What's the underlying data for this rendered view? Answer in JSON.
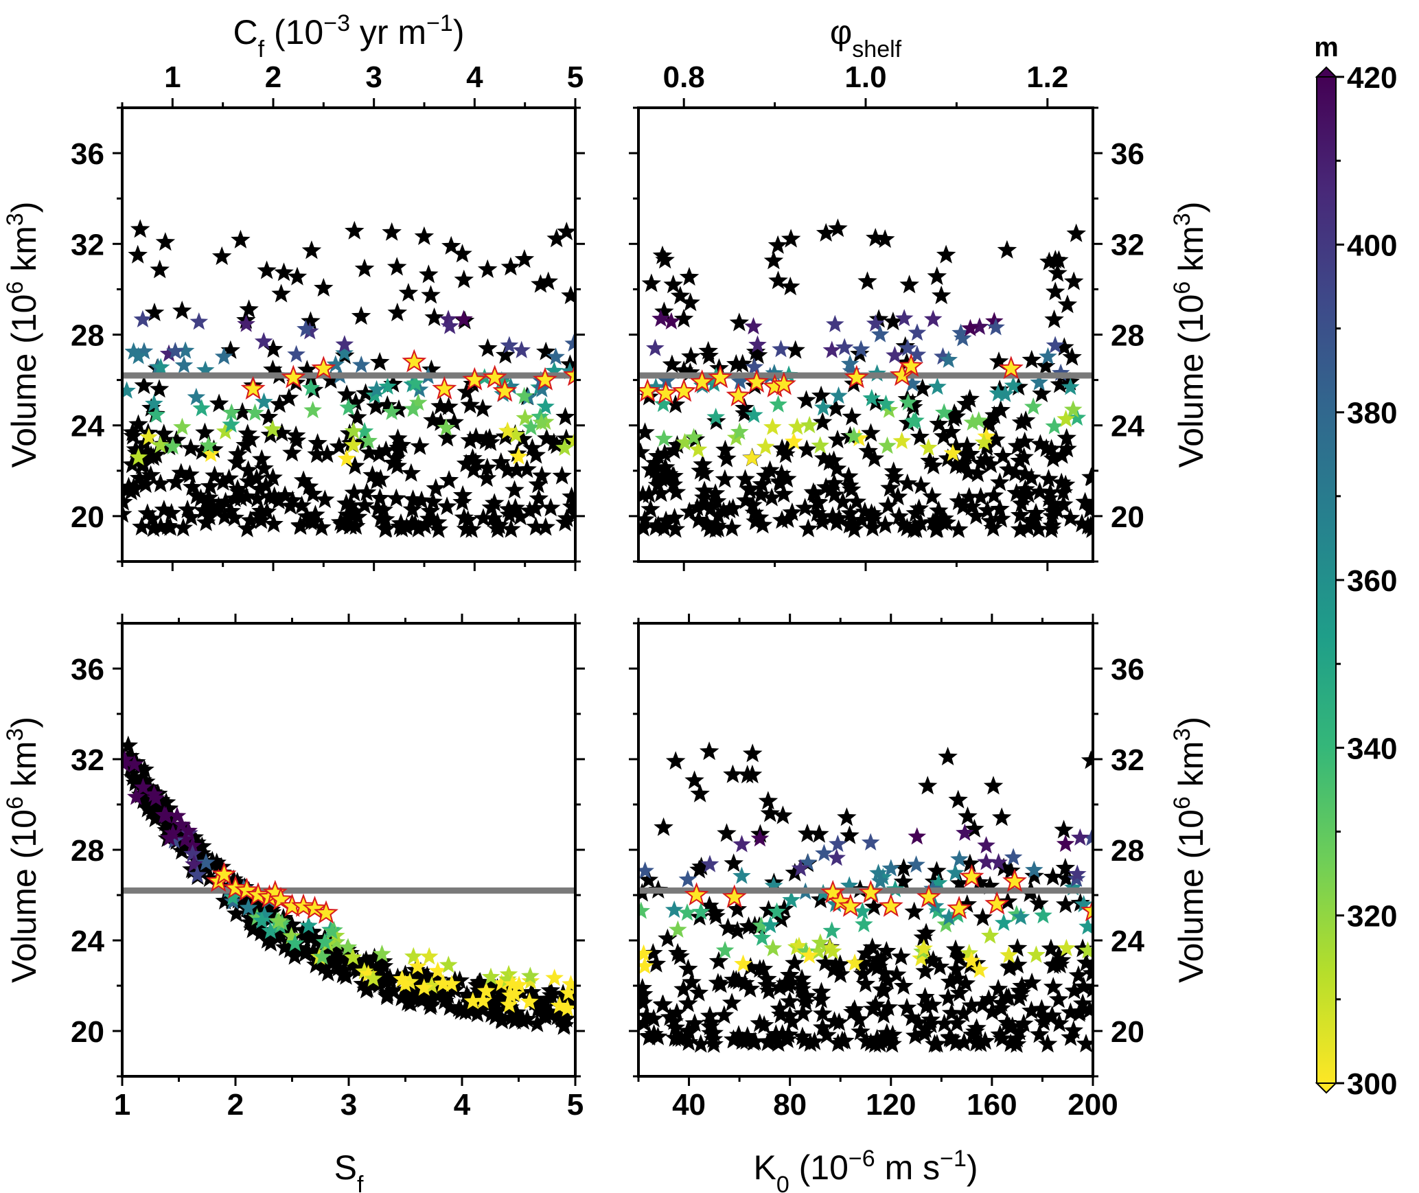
{
  "chart_data": [
    {
      "id": "top-left",
      "type": "scatter",
      "xlabel": "C<sub>f</sub> (10<sup>−3</sup> yr m<sup>−1</sup>)",
      "xaxis_position": "top",
      "xlim": [
        0.5,
        5
      ],
      "xticks": [
        "1",
        "2",
        "3",
        "4",
        "5"
      ],
      "xtick_values": [
        1,
        2,
        3,
        4,
        5
      ],
      "ylabel": "Volume (10<sup>6</sup> km<sup>3</sup>)",
      "yaxis_position": "left",
      "ylim": [
        18,
        38
      ],
      "yticks": [
        "20",
        "24",
        "28",
        "32",
        "36"
      ],
      "ytick_values": [
        20,
        24,
        28,
        32,
        36
      ],
      "reference_line": 26.2,
      "seed": 11,
      "pattern": "flat",
      "highlight_x": [
        2.2,
        2.5,
        3.4,
        3.7,
        4.0,
        4.2,
        4.3,
        4.7,
        5.0,
        1.8
      ],
      "highlight_y": [
        26.1,
        26.5,
        26.8,
        25.6,
        26.0,
        26.1,
        25.5,
        26.0,
        26.2,
        25.6
      ]
    },
    {
      "id": "top-right",
      "type": "scatter",
      "xlabel": "φ<sub>shelf</sub>",
      "xaxis_position": "top",
      "xlim": [
        0.75,
        1.25
      ],
      "xticks": [
        "0.8",
        "1.0",
        "1.2"
      ],
      "xtick_values": [
        0.8,
        1.0,
        1.2
      ],
      "ylabel": "Volume (10<sup>6</sup> km<sup>3</sup>)",
      "yaxis_position": "right",
      "ylim": [
        18,
        38
      ],
      "yticks": [
        "20",
        "24",
        "28",
        "32",
        "36"
      ],
      "ytick_values": [
        20,
        24,
        28,
        32,
        36
      ],
      "reference_line": 26.2,
      "seed": 23,
      "pattern": "flat",
      "highlight_x": [
        0.76,
        0.78,
        0.8,
        0.82,
        0.84,
        0.86,
        0.88,
        0.9,
        0.91,
        0.99,
        1.04,
        1.05,
        1.16
      ],
      "highlight_y": [
        25.5,
        25.4,
        25.5,
        25.9,
        26.1,
        25.3,
        25.9,
        25.7,
        25.8,
        26.1,
        26.2,
        26.6,
        26.5
      ]
    },
    {
      "id": "bottom-left",
      "type": "scatter",
      "xlabel": "S<sub>f</sub>",
      "xaxis_position": "bottom",
      "xlim": [
        1,
        5
      ],
      "xticks": [
        "1",
        "2",
        "3",
        "4",
        "5"
      ],
      "xtick_values": [
        1,
        2,
        3,
        4,
        5
      ],
      "ylabel": "Volume (10<sup>6</sup> km<sup>3</sup>)",
      "yaxis_position": "left",
      "ylim": [
        18,
        38
      ],
      "yticks": [
        "20",
        "24",
        "28",
        "32",
        "36"
      ],
      "ytick_values": [
        20,
        24,
        28,
        32,
        36
      ],
      "reference_line": 26.2,
      "seed": 37,
      "pattern": "decay",
      "highlight_x": [
        1.85,
        1.9,
        2.0,
        2.1,
        2.2,
        2.3,
        2.35,
        2.4,
        2.5,
        2.6,
        2.7,
        2.8
      ],
      "highlight_y": [
        26.6,
        26.9,
        26.3,
        26.2,
        26.0,
        25.9,
        26.1,
        25.8,
        25.5,
        25.5,
        25.4,
        25.2
      ]
    },
    {
      "id": "bottom-right",
      "type": "scatter",
      "xlabel": "K<sub>0</sub> (10<sup>−6</sup> m s<sup>−1</sup>)",
      "xaxis_position": "bottom",
      "xlim": [
        20,
        200
      ],
      "xticks": [
        "40",
        "80",
        "120",
        "160",
        "200"
      ],
      "xtick_values": [
        40,
        80,
        120,
        160,
        200
      ],
      "ylabel": "Volume (10<sup>6</sup> km<sup>3</sup>)",
      "yaxis_position": "right",
      "ylim": [
        18,
        38
      ],
      "yticks": [
        "20",
        "24",
        "28",
        "32",
        "36"
      ],
      "ytick_values": [
        20,
        24,
        28,
        32,
        36
      ],
      "reference_line": 26.2,
      "seed": 53,
      "pattern": "flat",
      "highlight_x": [
        43,
        58,
        97,
        100,
        104,
        112,
        120,
        135,
        147,
        152,
        162,
        169,
        200
      ],
      "highlight_y": [
        26.0,
        25.9,
        26.1,
        25.7,
        25.5,
        26.1,
        25.5,
        25.9,
        25.4,
        26.8,
        25.6,
        26.6,
        25.3
      ]
    }
  ],
  "colorbar": {
    "title": "m",
    "min": 300,
    "max": 420,
    "ticks": [
      "300",
      "320",
      "340",
      "360",
      "380",
      "400",
      "420"
    ],
    "tick_values": [
      300,
      320,
      340,
      360,
      380,
      400,
      420
    ],
    "colormap": [
      "#fde725",
      "#b5de2b",
      "#6ece58",
      "#35b779",
      "#1f9e89",
      "#26828e",
      "#31688e",
      "#3e4989",
      "#482878",
      "#440154"
    ]
  },
  "style": {
    "background": "#ffffff",
    "frame_color": "#000000",
    "reference_line_color": "#7a7a7a",
    "black_star_color": "#000000",
    "highlight_star_fill": "#fde725",
    "highlight_star_outline": "#d7191c"
  }
}
